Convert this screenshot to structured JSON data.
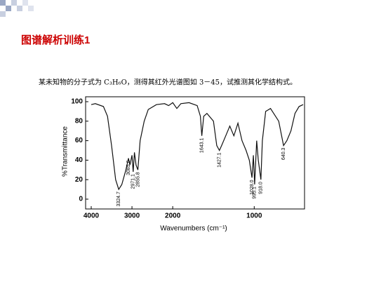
{
  "slide_title": "图谱解析训练1",
  "problem": "某未知物的分子式为 C₃H₆O，测得其红外光谱图如 3－45，试推测其化学结构式。",
  "chart_data": {
    "type": "line",
    "color": "#111111",
    "xlabel": "Wavenumbers (cm⁻¹)",
    "ylabel": "%Transmittance",
    "xlim": [
      4000,
      400
    ],
    "x_scale_change": {
      "at": 2000,
      "factor": 2
    },
    "ylim": [
      -5,
      105
    ],
    "xticks": [
      4000,
      3000,
      2000,
      1000
    ],
    "yticks": [
      0,
      20,
      40,
      60,
      80,
      100
    ],
    "x": [
      4000,
      3900,
      3700,
      3600,
      3500,
      3400,
      3324.7,
      3250,
      3150,
      3085.6,
      3050,
      3000,
      2971.1,
      2940,
      2900,
      2855.8,
      2800,
      2700,
      2600,
      2400,
      2200,
      2100,
      2000,
      1950,
      1900,
      1800,
      1700,
      1660,
      1643.1,
      1620,
      1580,
      1500,
      1460,
      1427.1,
      1400,
      1350,
      1300,
      1250,
      1200,
      1150,
      1100,
      1060,
      1028,
      1010,
      995.1,
      970,
      950,
      918,
      900,
      860,
      800,
      700,
      640.3,
      600,
      550,
      500,
      450,
      400
    ],
    "values": [
      97,
      98,
      95,
      85,
      55,
      20,
      10,
      15,
      30,
      42,
      35,
      45,
      28,
      48,
      35,
      30,
      60,
      80,
      92,
      97,
      98,
      96,
      99,
      93,
      98,
      99,
      96,
      85,
      65,
      85,
      88,
      80,
      55,
      50,
      55,
      65,
      75,
      65,
      78,
      60,
      50,
      40,
      22,
      45,
      15,
      60,
      40,
      20,
      60,
      90,
      93,
      80,
      55,
      60,
      70,
      88,
      95,
      97
    ],
    "peak_labels": [
      {
        "value": 3324.7,
        "label": "3324.7"
      },
      {
        "value": 3085.6,
        "label": "3085.6"
      },
      {
        "value": 2971.1,
        "label": "2971.1"
      },
      {
        "value": 2855.8,
        "label": "2855.8"
      },
      {
        "value": 1643.1,
        "label": "1643.1"
      },
      {
        "value": 1427.1,
        "label": "1427.1"
      },
      {
        "value": 1028,
        "label": "1028.0"
      },
      {
        "value": 995.1,
        "label": "995.1"
      },
      {
        "value": 918,
        "label": "918.0"
      },
      {
        "value": 640.3,
        "label": "640.3"
      }
    ]
  }
}
